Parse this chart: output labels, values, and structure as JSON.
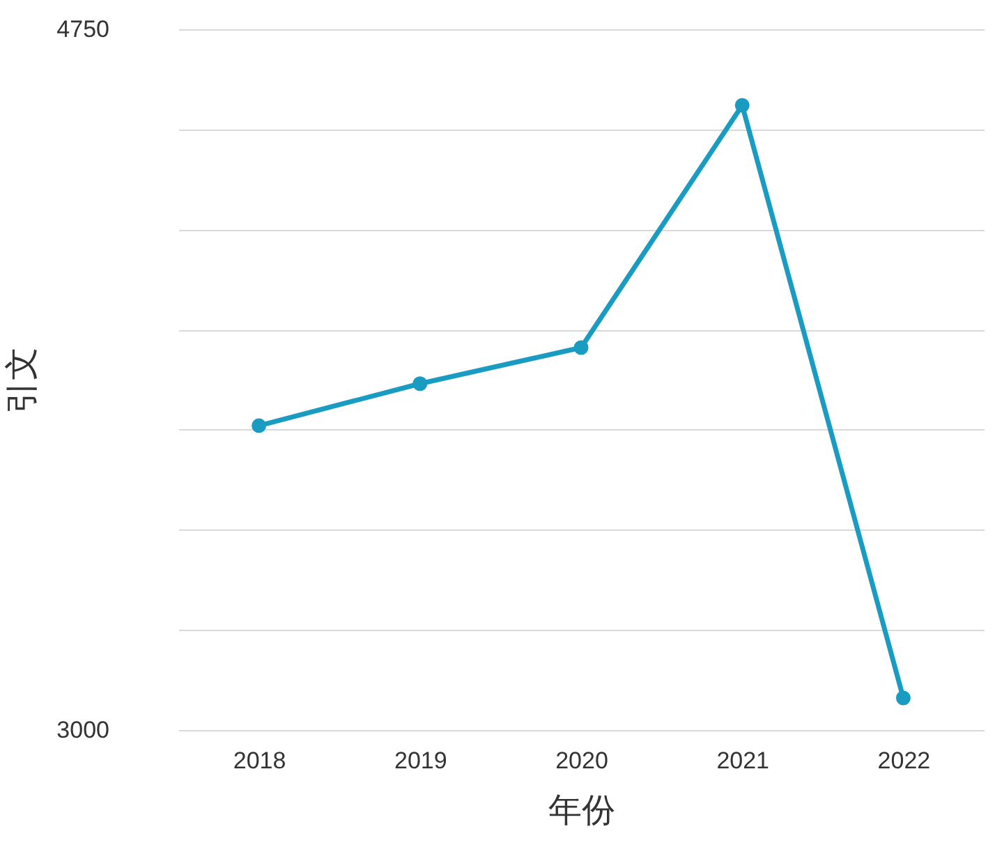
{
  "chart_data": {
    "type": "line",
    "xlabel": "年份",
    "ylabel": "引文",
    "categories": [
      "2018",
      "2019",
      "2020",
      "2021",
      "2022"
    ],
    "series": [
      {
        "color": "#1a9cc2",
        "values": [
          3760,
          3865,
          3955,
          4560,
          3080
        ]
      }
    ],
    "ylim": [
      3000,
      4750
    ],
    "yticks": [
      3000,
      {
        "value": 3250,
        "label": null
      },
      {
        "value": 3500,
        "label": null
      },
      {
        "value": 3750,
        "label": null
      },
      {
        "value": 4000,
        "label": null
      },
      {
        "value": 4250,
        "label": null
      },
      {
        "value": 4500,
        "label": null
      },
      4750
    ],
    "grid": "y",
    "marker": "circle",
    "line_style": "solid"
  }
}
